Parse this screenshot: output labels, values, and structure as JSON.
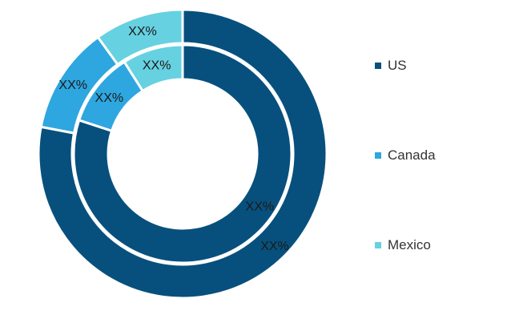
{
  "chart_data": {
    "type": "pie",
    "subtype": "nested-donut",
    "categories": [
      "US",
      "Canada",
      "Mexico"
    ],
    "colors": [
      "#07507d",
      "#2ea6e0",
      "#66d1e0"
    ],
    "rings": [
      {
        "ring": "outer",
        "values": [
          78,
          12,
          10
        ],
        "labels": [
          "XX%",
          "XX%",
          "XX%"
        ]
      },
      {
        "ring": "inner",
        "values": [
          80,
          11,
          9
        ],
        "labels": [
          "XX%",
          "XX%",
          "XX%"
        ]
      }
    ],
    "legend_position": "right",
    "legend": [
      {
        "label": "US",
        "color": "#07507d"
      },
      {
        "label": "Canada",
        "color": "#2ea6e0"
      },
      {
        "label": "Mexico",
        "color": "#66d1e0"
      }
    ]
  }
}
